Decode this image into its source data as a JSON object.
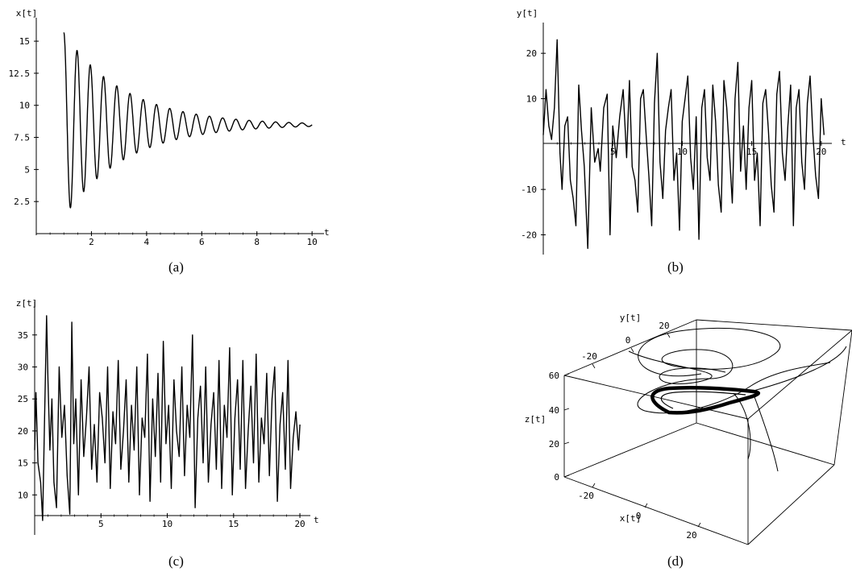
{
  "captions": [
    "(a)",
    "(b)",
    "(c)",
    "(d)"
  ],
  "chart_data": [
    {
      "id": "a",
      "type": "line",
      "ylabel": "x[t]",
      "xlabel": "t",
      "xlim": [
        0,
        10.2
      ],
      "ylim": [
        0,
        16.2
      ],
      "xticks": [
        "2",
        "4",
        "6",
        "8",
        "10"
      ],
      "yticks": [
        "2.5",
        "5",
        "7.5",
        "10",
        "12.5",
        "15"
      ],
      "series": [
        {
          "description": "damped oscillation",
          "start_t": 1.0,
          "end_t": 10.0,
          "equilibrium": 8.48,
          "initial_amplitude": 7.2,
          "decay_rate": 0.45,
          "period": 0.48,
          "first_peak": 15.7,
          "first_trough": 2.5
        }
      ]
    },
    {
      "id": "b",
      "type": "line",
      "ylabel": "y[t]",
      "xlabel": "t",
      "xlim": [
        0,
        20.3
      ],
      "ylim": [
        -24,
        25
      ],
      "xticks": [
        "5",
        "10",
        "15",
        "20"
      ],
      "yticks": [
        "-20",
        "-10",
        "10",
        "20"
      ],
      "series": [
        {
          "description": "chaotic oscillation",
          "x": [
            0.0,
            0.2,
            0.4,
            0.6,
            0.8,
            1.0,
            1.2,
            1.35,
            1.55,
            1.75,
            1.95,
            2.15,
            2.35,
            2.55,
            2.75,
            2.95,
            3.2,
            3.45,
            3.7,
            3.95,
            4.1,
            4.35,
            4.6,
            4.8,
            5.0,
            5.25,
            5.5,
            5.75,
            6.0,
            6.2,
            6.4,
            6.6,
            6.8,
            7.0,
            7.2,
            7.4,
            7.6,
            7.8,
            8.0,
            8.2,
            8.4,
            8.6,
            8.8,
            9.0,
            9.2,
            9.4,
            9.6,
            9.8,
            10.0,
            10.2,
            10.4,
            10.6,
            10.8,
            11.0,
            11.2,
            11.4,
            11.6,
            11.8,
            12.0,
            12.2,
            12.4,
            12.6,
            12.8,
            13.0,
            13.2,
            13.4,
            13.6,
            13.8,
            14.0,
            14.2,
            14.4,
            14.6,
            14.8,
            15.0,
            15.2,
            15.4,
            15.6,
            15.8,
            16.0,
            16.2,
            16.4,
            16.6,
            16.8,
            17.0,
            17.2,
            17.4,
            17.6,
            17.8,
            18.0,
            18.2,
            18.4,
            18.6,
            18.8,
            19.0,
            19.2,
            19.4,
            19.6,
            19.8,
            20.0,
            20.2
          ],
          "y": [
            2,
            12,
            4,
            1,
            8,
            23,
            -2,
            -10,
            4,
            6,
            -8,
            -12,
            -18,
            13,
            3,
            -5,
            -23,
            8,
            -4,
            -1,
            -6,
            8,
            11,
            -20,
            4,
            -3,
            6,
            12,
            -3,
            14,
            -5,
            -8,
            -15,
            10,
            12,
            2,
            -7,
            -18,
            9,
            20,
            -4,
            -12,
            3,
            8,
            12,
            -8,
            -2,
            -19,
            5,
            10,
            15,
            -3,
            -10,
            6,
            -21,
            8,
            12,
            -3,
            -8,
            13,
            5,
            -9,
            -15,
            14,
            8,
            -2,
            -13,
            10,
            18,
            -6,
            4,
            -10,
            8,
            14,
            -8,
            -2,
            -18,
            9,
            12,
            3,
            -9,
            -15,
            11,
            16,
            -2,
            -8,
            4,
            13,
            -18,
            8,
            12,
            -4,
            -10,
            9,
            15,
            2,
            -7,
            -12,
            10,
            2
          ]
        }
      ]
    },
    {
      "id": "c",
      "type": "line",
      "ylabel": "z[t]",
      "xlabel": "t",
      "xlim": [
        0,
        20.3
      ],
      "ylim": [
        4,
        39
      ],
      "xticks": [
        "5",
        "10",
        "15",
        "20"
      ],
      "yticks": [
        "10",
        "15",
        "20",
        "25",
        "30",
        "35"
      ],
      "series": [
        {
          "description": "chaotic oscillation",
          "x": [
            0.0,
            0.1,
            0.25,
            0.45,
            0.6,
            0.75,
            0.9,
            1.0,
            1.15,
            1.3,
            1.45,
            1.65,
            1.85,
            2.05,
            2.25,
            2.45,
            2.65,
            2.8,
            2.95,
            3.1,
            3.3,
            3.5,
            3.7,
            3.9,
            4.1,
            4.3,
            4.5,
            4.7,
            4.9,
            5.1,
            5.3,
            5.5,
            5.7,
            5.9,
            6.1,
            6.3,
            6.5,
            6.7,
            6.9,
            7.1,
            7.3,
            7.5,
            7.7,
            7.9,
            8.1,
            8.3,
            8.5,
            8.7,
            8.9,
            9.1,
            9.3,
            9.5,
            9.7,
            9.9,
            10.1,
            10.3,
            10.5,
            10.7,
            10.9,
            11.1,
            11.3,
            11.5,
            11.7,
            11.9,
            12.1,
            12.3,
            12.5,
            12.7,
            12.9,
            13.1,
            13.3,
            13.5,
            13.7,
            13.9,
            14.1,
            14.3,
            14.5,
            14.7,
            14.9,
            15.1,
            15.3,
            15.5,
            15.7,
            15.9,
            16.1,
            16.3,
            16.5,
            16.7,
            16.9,
            17.1,
            17.3,
            17.5,
            17.7,
            17.9,
            18.1,
            18.3,
            18.5,
            18.7,
            18.9,
            19.1,
            19.3,
            19.5,
            19.7,
            19.9,
            20.0
          ],
          "y": [
            17,
            26,
            15,
            12,
            6,
            22,
            38,
            28,
            17,
            25,
            12,
            8,
            30,
            19,
            24,
            13,
            7,
            37,
            18,
            25,
            10,
            28,
            16,
            22,
            30,
            14,
            21,
            12,
            26,
            22,
            15,
            30,
            11,
            23,
            18,
            31,
            14,
            20,
            28,
            12,
            24,
            17,
            30,
            10,
            22,
            19,
            32,
            9,
            25,
            16,
            29,
            12,
            34,
            18,
            24,
            11,
            28,
            20,
            16,
            30,
            13,
            24,
            19,
            35,
            8,
            22,
            27,
            15,
            30,
            12,
            21,
            26,
            14,
            31,
            11,
            24,
            19,
            33,
            10,
            22,
            28,
            14,
            31,
            11,
            20,
            27,
            15,
            32,
            12,
            22,
            18,
            29,
            13,
            25,
            30,
            9,
            21,
            26,
            14,
            31,
            11,
            19,
            23,
            17,
            21
          ]
        }
      ]
    },
    {
      "id": "d",
      "type": "line3d",
      "xlabel": "x[t]",
      "ylabel": "y[t]",
      "zlabel": "z[t]",
      "xticks": [
        "-20",
        "0",
        "20"
      ],
      "yticks": [
        "-20",
        "0",
        "20"
      ],
      "zticks": [
        "0",
        "20",
        "40",
        "60"
      ],
      "series": [
        {
          "description": "Lorenz-like attractor trajectory settling into a limit cycle"
        }
      ]
    }
  ]
}
